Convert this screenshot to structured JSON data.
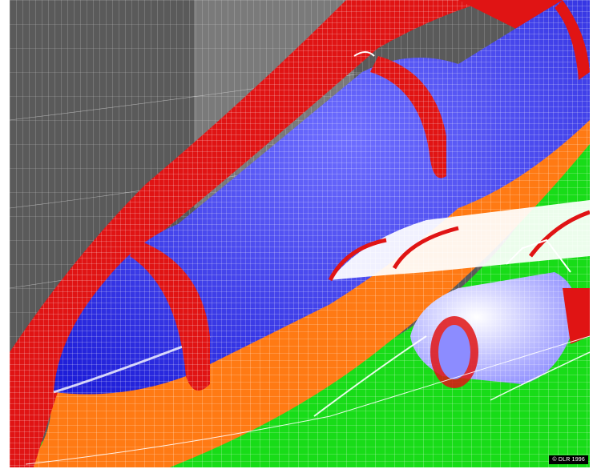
{
  "image": {
    "colors": {
      "farfield_gray": "#5c5c5c",
      "fuselage_blue": "#2828f0",
      "collar_red": "#e01414",
      "fairing_orange": "#ff7a14",
      "ground_green": "#18dc18",
      "mesh_lines": "#ffffff"
    }
  },
  "copyright": {
    "text": "© DLR 1996"
  }
}
